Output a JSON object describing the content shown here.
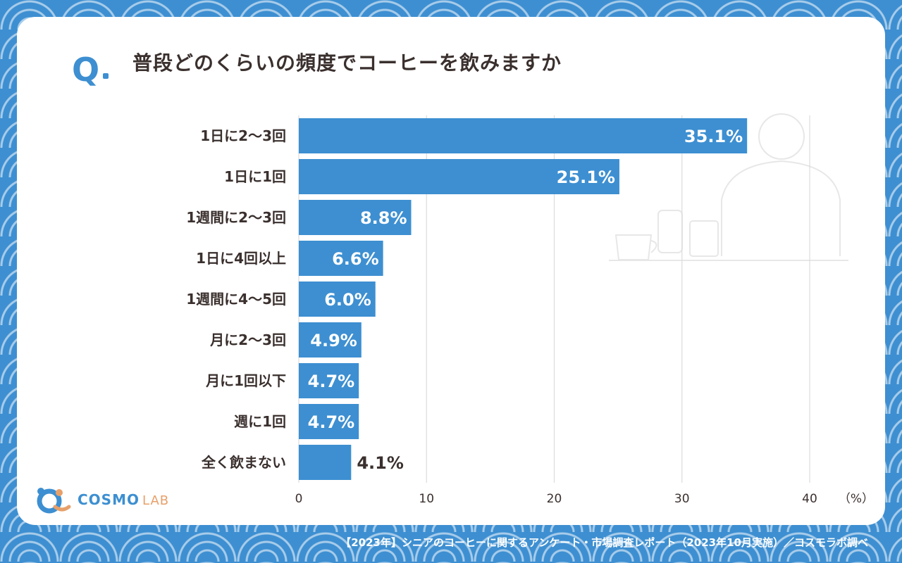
{
  "header": {
    "q_label": "Q",
    "title": "普段どのくらいの頻度でコーヒーを飲みますか"
  },
  "logo": {
    "main": "COSMO",
    "sub": "LAB"
  },
  "footer": {
    "source": "【2023年】シニアのコーヒーに関するアンケート・市場調査レポート（2023年10月実施）／コスモラボ調べ"
  },
  "colors": {
    "bar": "#3d8fd1",
    "accent": "#3d8fd1",
    "logo_accent": "#e7a06a",
    "text": "#3a302e"
  },
  "chart_data": {
    "type": "bar",
    "orientation": "horizontal",
    "title": "普段どのくらいの頻度でコーヒーを飲みますか",
    "categories": [
      "1日に2〜3回",
      "1日に1回",
      "1週間に2〜3回",
      "1日に4回以上",
      "1週間に4〜5回",
      "月に2〜3回",
      "月に1回以下",
      "週に1回",
      "全く飲まない"
    ],
    "values": [
      35.1,
      25.1,
      8.8,
      6.6,
      6.0,
      4.9,
      4.7,
      4.7,
      4.1
    ],
    "data_labels": [
      "35.1%",
      "25.1%",
      "8.8%",
      "6.6%",
      "6.0%",
      "4.9%",
      "4.7%",
      "4.7%",
      "4.1%"
    ],
    "xlim": [
      0,
      40
    ],
    "xticks": [
      0,
      10,
      20,
      30,
      40
    ],
    "xticklabels": [
      "0",
      "10",
      "20",
      "30",
      "40"
    ],
    "xunit": "（%）",
    "grid": true
  }
}
